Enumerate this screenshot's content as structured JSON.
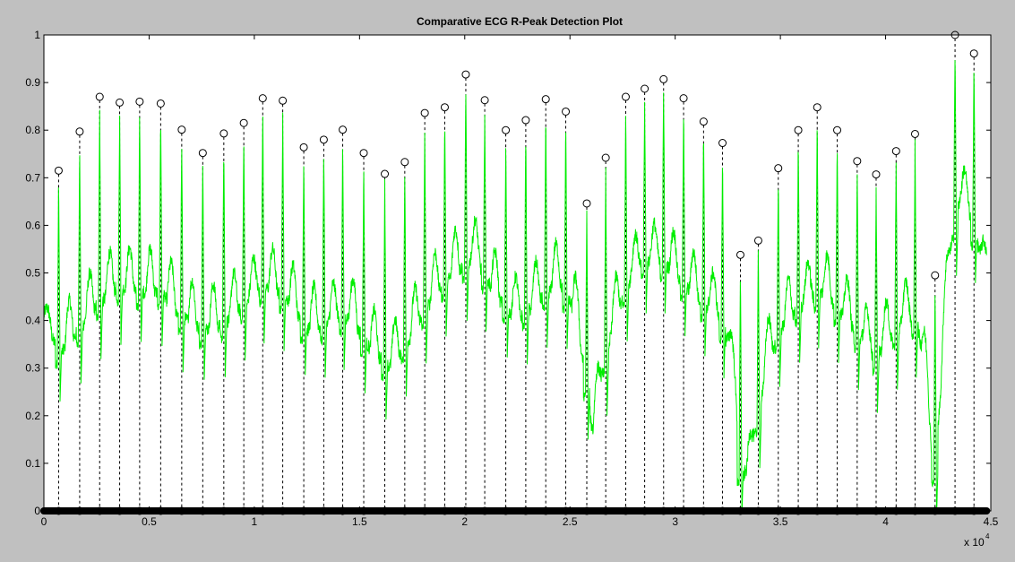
{
  "window": {
    "background": "#c0c0c0"
  },
  "chart_data": {
    "type": "line",
    "title": "Comparative ECG R-Peak Detection Plot",
    "xlabel": "",
    "ylabel": "",
    "xlim": [
      0,
      45000
    ],
    "ylim": [
      0,
      1
    ],
    "x_ticks": [
      0,
      5000,
      10000,
      15000,
      20000,
      25000,
      30000,
      35000,
      40000,
      45000
    ],
    "x_tick_labels": [
      "0",
      "0.5",
      "1",
      "1.5",
      "2",
      "2.5",
      "3",
      "3.5",
      "4",
      "4.5"
    ],
    "x_exponent_base": "x 10",
    "x_exponent_power": "4",
    "y_ticks": [
      0,
      0.1,
      0.2,
      0.3,
      0.4,
      0.5,
      0.6,
      0.7,
      0.8,
      0.9,
      1
    ],
    "y_tick_labels": [
      "0",
      "0.1",
      "0.2",
      "0.3",
      "0.4",
      "0.5",
      "0.6",
      "0.7",
      "0.8",
      "0.9",
      "1"
    ],
    "grid": false,
    "colors": {
      "plot_background": "#ffffff",
      "signal": "#00ee00",
      "markers": "#000000",
      "stems": "#000000"
    },
    "r_peaks": {
      "x": [
        700,
        1700,
        2650,
        3600,
        4550,
        5550,
        6550,
        7550,
        8550,
        9500,
        10400,
        11350,
        12350,
        13300,
        14200,
        15200,
        16200,
        17150,
        18100,
        19050,
        20050,
        20950,
        21950,
        22900,
        23850,
        24800,
        25800,
        26700,
        27650,
        28550,
        29450,
        30400,
        31350,
        32250,
        33100,
        33950,
        34900,
        35850,
        36750,
        37700,
        38650,
        39550,
        40500,
        41400,
        42350,
        43300,
        44200
      ],
      "y": [
        0.715,
        0.797,
        0.87,
        0.858,
        0.86,
        0.856,
        0.801,
        0.752,
        0.793,
        0.815,
        0.867,
        0.862,
        0.764,
        0.78,
        0.801,
        0.752,
        0.708,
        0.733,
        0.836,
        0.848,
        0.917,
        0.863,
        0.8,
        0.821,
        0.865,
        0.839,
        0.646,
        0.742,
        0.87,
        0.887,
        0.907,
        0.867,
        0.818,
        0.773,
        0.538,
        0.568,
        0.72,
        0.8,
        0.848,
        0.8,
        0.735,
        0.707,
        0.756,
        0.792,
        0.495,
        1.0,
        0.961
      ]
    },
    "baseline_pulse_rows": {
      "y": [
        0,
        0,
        0,
        0,
        0,
        0,
        0,
        0,
        0,
        0,
        0,
        0,
        0,
        0,
        0,
        0,
        0,
        0,
        0,
        0,
        0,
        0,
        0,
        0,
        0,
        0,
        0,
        0,
        0,
        0,
        0,
        0,
        0,
        0,
        0,
        0,
        0,
        0,
        0,
        0,
        0,
        0,
        0,
        0,
        0,
        0,
        0
      ]
    },
    "signal_baseline": {
      "x": [
        0,
        300,
        800,
        1500,
        2500,
        3500,
        4500,
        5500,
        6500,
        7500,
        8500,
        9500,
        10500,
        11500,
        12500,
        13500,
        14500,
        15500,
        16500,
        17500,
        18500,
        19500,
        20500,
        21500,
        22500,
        23500,
        24500,
        25200,
        25800,
        26100,
        26400,
        27000,
        27800,
        28500,
        29500,
        30500,
        31500,
        32200,
        32800,
        33100,
        33400,
        33800,
        34300,
        35000,
        36000,
        37000,
        38000,
        39000,
        39500,
        40000,
        41000,
        41500,
        42000,
        42300,
        42700,
        43000,
        43500,
        44000,
        44300,
        44800
      ],
      "y": [
        0.41,
        0.37,
        0.33,
        0.37,
        0.43,
        0.47,
        0.46,
        0.46,
        0.41,
        0.38,
        0.39,
        0.43,
        0.47,
        0.45,
        0.38,
        0.39,
        0.41,
        0.34,
        0.3,
        0.37,
        0.45,
        0.5,
        0.53,
        0.45,
        0.4,
        0.44,
        0.48,
        0.42,
        0.27,
        0.14,
        0.26,
        0.38,
        0.48,
        0.52,
        0.52,
        0.47,
        0.43,
        0.4,
        0.27,
        0.09,
        0.05,
        0.15,
        0.3,
        0.38,
        0.43,
        0.46,
        0.41,
        0.35,
        0.32,
        0.35,
        0.4,
        0.4,
        0.24,
        0.06,
        0.3,
        0.53,
        0.65,
        0.62,
        0.57,
        0.5
      ]
    }
  }
}
